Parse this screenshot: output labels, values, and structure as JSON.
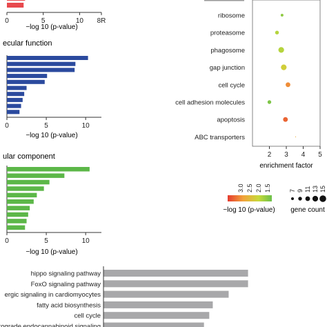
{
  "colors": {
    "bp_bar": "#e8484d",
    "mf_bar": "#2b4a9e",
    "cc_bar": "#5cb748",
    "kegg_bar": "#a8a8aa",
    "axis": "#333333",
    "text": "#222222"
  },
  "chart_data": [
    {
      "id": "biological-process",
      "type": "bar",
      "orientation": "horizontal",
      "title": "",
      "xlabel": "−log 10 (p-value)",
      "xlim": [
        0,
        13
      ],
      "xticks": [
        "0",
        "5",
        "10",
        "8R"
      ],
      "bars": [
        {
          "value": 2.5
        },
        {
          "value": 2.3
        }
      ]
    },
    {
      "id": "molecular-function",
      "type": "bar",
      "orientation": "horizontal",
      "title": "ecular function",
      "xlabel": "−log 10 (p-value)",
      "xlim": [
        0,
        12
      ],
      "xticks": [
        "0",
        "5",
        "10"
      ],
      "bars": [
        {
          "value": 10.3
        },
        {
          "value": 8.7
        },
        {
          "value": 8.6
        },
        {
          "value": 5.1
        },
        {
          "value": 4.8
        },
        {
          "value": 2.5
        },
        {
          "value": 2.2
        },
        {
          "value": 2.0
        },
        {
          "value": 1.8
        },
        {
          "value": 1.6
        }
      ]
    },
    {
      "id": "cellular-component",
      "type": "bar",
      "orientation": "horizontal",
      "title": "ular component",
      "xlabel": "−log 10 (p-value)",
      "xlim": [
        0,
        12
      ],
      "xticks": [
        "0",
        "5",
        "10"
      ],
      "bars": [
        {
          "value": 10.5
        },
        {
          "value": 7.3
        },
        {
          "value": 5.4
        },
        {
          "value": 4.7
        },
        {
          "value": 3.8
        },
        {
          "value": 3.4
        },
        {
          "value": 2.9
        },
        {
          "value": 2.7
        },
        {
          "value": 2.5
        },
        {
          "value": 2.3
        }
      ]
    },
    {
      "id": "kegg-enrichment",
      "type": "scatter",
      "title": "",
      "xlabel": "enrichment factor",
      "xlim": [
        1,
        5
      ],
      "xticks": [
        "2",
        "3",
        "4",
        "5"
      ],
      "categories": [
        "ribosome",
        "proteasome",
        "phagosome",
        "gap junction",
        "cell cycle",
        "cell adhesion molecules",
        "apoptosis",
        "ABC transporters"
      ],
      "points": [
        {
          "term": "ribosome",
          "x": 2.75,
          "pvalue_log": 1.7,
          "gene_count": 7
        },
        {
          "term": "proteasome",
          "x": 2.45,
          "pvalue_log": 1.9,
          "gene_count": 9
        },
        {
          "term": "phagosome",
          "x": 2.7,
          "pvalue_log": 1.9,
          "gene_count": 13
        },
        {
          "term": "gap junction",
          "x": 2.85,
          "pvalue_log": 2.1,
          "gene_count": 13
        },
        {
          "term": "cell cycle",
          "x": 3.1,
          "pvalue_log": 2.6,
          "gene_count": 11
        },
        {
          "term": "cell adhesion molecules",
          "x": 2.0,
          "pvalue_log": 1.6,
          "gene_count": 9
        },
        {
          "term": "apoptosis",
          "x": 2.95,
          "pvalue_log": 2.8,
          "gene_count": 11
        },
        {
          "term": "ABC transporters",
          "x": 3.55,
          "pvalue_log": 2.4,
          "gene_count": 3
        }
      ],
      "color_legend": {
        "label": "−log 10 (p-value)",
        "ticks": [
          "3.0",
          "2.5",
          "2.0",
          "1.5"
        ]
      },
      "size_legend": {
        "label": "gene count",
        "ticks": [
          "7",
          "9",
          "11",
          "13",
          "15"
        ]
      }
    },
    {
      "id": "kegg-pathways",
      "type": "bar",
      "orientation": "horizontal",
      "title": "",
      "categories": [
        "hippo signaling pathway",
        "FoxO signaling pathway",
        "ergic signaling in cardiomyocytes",
        "fatty acid biosynthesis",
        "cell cycle",
        "retrograde endocannabinoid signaling"
      ],
      "values": [
        8.2,
        8.2,
        7.1,
        6.2,
        6.0,
        5.7
      ],
      "xlim": [
        0,
        9
      ]
    }
  ]
}
